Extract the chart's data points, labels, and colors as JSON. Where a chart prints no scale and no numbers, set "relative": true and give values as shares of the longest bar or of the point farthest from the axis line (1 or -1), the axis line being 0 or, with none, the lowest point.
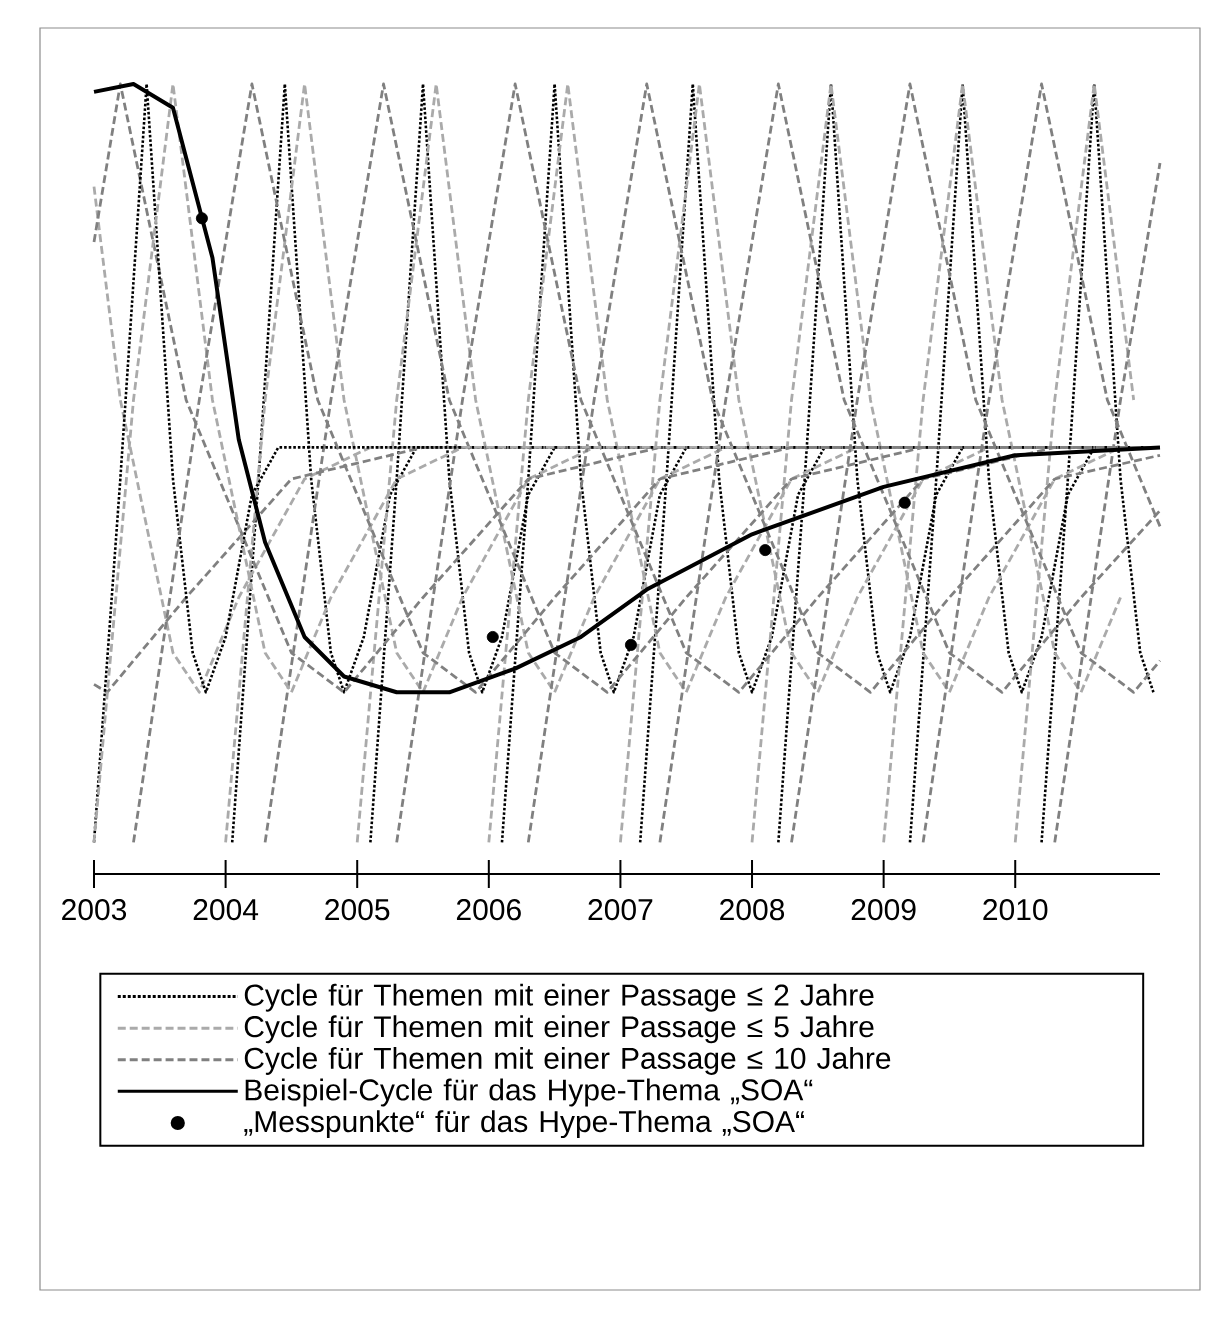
{
  "chart_data": {
    "type": "line",
    "relative": true,
    "xlim": [
      2003,
      2011.1
    ],
    "xticks": [
      2003,
      2004,
      2005,
      2006,
      2007,
      2008,
      2009,
      2010
    ],
    "tick_labels": "x",
    "legend": "bottom",
    "grid": false,
    "series": [
      {
        "name": "Cycle für Themen mit einer Passage ≤ 2 Jahre",
        "color": "#000000",
        "line_style": "dotted",
        "x": [
          2003,
          2003.2,
          2003.4,
          2003.6,
          2003.75,
          2003.85,
          2004,
          2004.2,
          2004.4,
          2011.1
        ],
        "values": [
          0.04,
          0.5,
          1,
          0.5,
          0.28,
          0.23,
          0.3,
          0.48,
          0.54,
          0.54
        ]
      },
      {
        "name": "Cycle für Themen mit einer Passage ≤ 5 Jahre",
        "color": "#aaaaaa",
        "line_style": "dashed",
        "x": [
          2003,
          2003.3,
          2003.6,
          2003.9,
          2004.3,
          2004.5,
          2004.8,
          2005.3,
          2005.8,
          2011.1
        ],
        "values": [
          0.04,
          0.6,
          1,
          0.6,
          0.28,
          0.23,
          0.35,
          0.5,
          0.54,
          0.54
        ]
      },
      {
        "name": "Cycle für Themen mit einer Passage ≤ 10 Jahre",
        "color": "#808080",
        "line_style": "dashed",
        "x": [
          2003.3,
          2003.8,
          2004.2,
          2004.7,
          2005.5,
          2005.9,
          2006.5,
          2007.3,
          2008.3,
          2011.1
        ],
        "values": [
          0.04,
          0.6,
          1,
          0.6,
          0.28,
          0.23,
          0.35,
          0.5,
          0.54,
          0.54
        ]
      },
      {
        "name": "Beispiel-Cycle für das Hype-Thema „SOA“",
        "color": "#000000",
        "line_style": "solid",
        "x": [
          2003,
          2003.3,
          2003.6,
          2003.9,
          2004.1,
          2004.3,
          2004.6,
          2004.9,
          2005.3,
          2005.7,
          2006.2,
          2006.7,
          2007.2,
          2008,
          2009,
          2010,
          2011.1
        ],
        "values": [
          0.99,
          1,
          0.97,
          0.78,
          0.55,
          0.42,
          0.3,
          0.25,
          0.23,
          0.23,
          0.26,
          0.3,
          0.36,
          0.43,
          0.49,
          0.53,
          0.54
        ]
      },
      {
        "name": "„Messpunkte“  für das Hype-Thema „SOA“",
        "color": "#000000",
        "type": "scatter",
        "x": [
          2003.82,
          2006.03,
          2007.08,
          2008.1,
          2009.16
        ],
        "values": [
          0.83,
          0.3,
          0.29,
          0.41,
          0.47
        ]
      },
      {
        "color": "#000000",
        "line_style": "dotted",
        "x": [
          2004.05,
          2004.25,
          2004.45,
          2004.65,
          2004.8,
          2004.9,
          2005.05,
          2005.25,
          2005.45,
          2011.1
        ],
        "values": [
          0.04,
          0.5,
          1,
          0.5,
          0.28,
          0.23,
          0.3,
          0.48,
          0.54,
          0.54
        ]
      },
      {
        "color": "#000000",
        "line_style": "dotted",
        "x": [
          2005.1,
          2005.3,
          2005.5,
          2005.7,
          2005.85,
          2005.95,
          2006.1,
          2006.3,
          2006.5,
          2011.1
        ],
        "values": [
          0.04,
          0.5,
          1,
          0.5,
          0.28,
          0.23,
          0.3,
          0.48,
          0.54,
          0.54
        ]
      },
      {
        "color": "#000000",
        "line_style": "dotted",
        "x": [
          2006.1,
          2006.3,
          2006.5,
          2006.7,
          2006.85,
          2006.95,
          2007.1,
          2007.3,
          2007.5,
          2011.1
        ],
        "values": [
          0.04,
          0.5,
          1,
          0.5,
          0.28,
          0.23,
          0.3,
          0.48,
          0.54,
          0.54
        ]
      },
      {
        "color": "#000000",
        "line_style": "dotted",
        "x": [
          2007.15,
          2007.35,
          2007.55,
          2007.75,
          2007.9,
          2008,
          2008.15,
          2008.35,
          2008.55,
          2011.1
        ],
        "values": [
          0.04,
          0.5,
          1,
          0.5,
          0.28,
          0.23,
          0.3,
          0.48,
          0.54,
          0.54
        ]
      },
      {
        "color": "#000000",
        "line_style": "dotted",
        "x": [
          2008.2,
          2008.4,
          2008.6,
          2008.8,
          2008.95,
          2009.05,
          2009.2,
          2009.4,
          2009.6,
          2011.1
        ],
        "values": [
          0.04,
          0.5,
          1,
          0.5,
          0.28,
          0.23,
          0.3,
          0.48,
          0.54,
          0.54
        ]
      },
      {
        "color": "#000000",
        "line_style": "dotted",
        "x": [
          2009.2,
          2009.4,
          2009.6,
          2009.8,
          2009.95,
          2010.05,
          2010.2,
          2010.4,
          2010.6,
          2011.1
        ],
        "values": [
          0.04,
          0.5,
          1,
          0.5,
          0.28,
          0.23,
          0.3,
          0.48,
          0.54,
          0.54
        ]
      },
      {
        "color": "#000000",
        "line_style": "dotted",
        "x": [
          2010.2,
          2010.4,
          2010.6,
          2010.8,
          2010.95,
          2011.05
        ],
        "values": [
          0.04,
          0.5,
          1,
          0.5,
          0.28,
          0.23
        ]
      },
      {
        "color": "#aaaaaa",
        "line_style": "dashed",
        "x": [
          2003,
          2003.2,
          2003.6,
          2003.8,
          2004.1,
          2004.6,
          2005.1,
          2011.1
        ],
        "values": [
          0.87,
          0.6,
          0.28,
          0.23,
          0.35,
          0.5,
          0.54,
          0.54
        ]
      },
      {
        "color": "#aaaaaa",
        "line_style": "dashed",
        "x": [
          2004,
          2004.3,
          2004.6,
          2004.9,
          2005.3,
          2005.5,
          2005.8,
          2006.3,
          2006.8,
          2011.1
        ],
        "values": [
          0.04,
          0.6,
          1,
          0.6,
          0.28,
          0.23,
          0.35,
          0.5,
          0.54,
          0.54
        ]
      },
      {
        "color": "#aaaaaa",
        "line_style": "dashed",
        "x": [
          2005,
          2005.3,
          2005.6,
          2005.9,
          2006.3,
          2006.5,
          2006.8,
          2007.3,
          2007.8,
          2011.1
        ],
        "values": [
          0.04,
          0.6,
          1,
          0.6,
          0.28,
          0.23,
          0.35,
          0.5,
          0.54,
          0.54
        ]
      },
      {
        "color": "#aaaaaa",
        "line_style": "dashed",
        "x": [
          2006,
          2006.3,
          2006.6,
          2006.9,
          2007.3,
          2007.5,
          2007.8,
          2008.3,
          2008.8,
          2011.1
        ],
        "values": [
          0.04,
          0.6,
          1,
          0.6,
          0.28,
          0.23,
          0.35,
          0.5,
          0.54,
          0.54
        ]
      },
      {
        "color": "#aaaaaa",
        "line_style": "dashed",
        "x": [
          2007,
          2007.3,
          2007.6,
          2007.9,
          2008.3,
          2008.5,
          2008.8,
          2009.3,
          2009.8,
          2011.1
        ],
        "values": [
          0.04,
          0.6,
          1,
          0.6,
          0.28,
          0.23,
          0.35,
          0.5,
          0.54,
          0.54
        ]
      },
      {
        "color": "#aaaaaa",
        "line_style": "dashed",
        "x": [
          2008,
          2008.3,
          2008.6,
          2008.9,
          2009.3,
          2009.5,
          2009.8,
          2010.3,
          2010.8,
          2011.1
        ],
        "values": [
          0.04,
          0.6,
          1,
          0.6,
          0.28,
          0.23,
          0.35,
          0.5,
          0.54,
          0.54
        ]
      },
      {
        "color": "#aaaaaa",
        "line_style": "dashed",
        "x": [
          2009,
          2009.3,
          2009.6,
          2009.9,
          2010.3,
          2010.5,
          2010.8
        ],
        "values": [
          0.04,
          0.6,
          1,
          0.6,
          0.28,
          0.23,
          0.35
        ]
      },
      {
        "color": "#aaaaaa",
        "line_style": "dashed",
        "x": [
          2010,
          2010.3,
          2010.6,
          2010.9
        ],
        "values": [
          0.04,
          0.6,
          1,
          0.6
        ]
      },
      {
        "color": "#808080",
        "line_style": "dashed",
        "x": [
          2003,
          2003.1,
          2003.7,
          2004.5,
          2005.5,
          2011.1
        ],
        "values": [
          0.24,
          0.23,
          0.35,
          0.5,
          0.54,
          0.54
        ]
      },
      {
        "color": "#808080",
        "line_style": "dashed",
        "x": [
          2003,
          2003.2,
          2003.7,
          2004.5,
          2004.9,
          2005.5,
          2006.3,
          2007.3,
          2011.1
        ],
        "values": [
          0.8,
          1,
          0.6,
          0.28,
          0.23,
          0.35,
          0.5,
          0.54,
          0.54
        ]
      },
      {
        "color": "#808080",
        "line_style": "dashed",
        "x": [
          2004.3,
          2004.8,
          2005.2,
          2005.7,
          2006.5,
          2006.9,
          2007.5,
          2008.3,
          2009.3,
          2011.1
        ],
        "values": [
          0.04,
          0.6,
          1,
          0.6,
          0.28,
          0.23,
          0.35,
          0.5,
          0.54,
          0.54
        ]
      },
      {
        "color": "#808080",
        "line_style": "dashed",
        "x": [
          2005.3,
          2005.8,
          2006.2,
          2006.7,
          2007.5,
          2007.9,
          2008.5,
          2009.3,
          2010.3,
          2011.1
        ],
        "values": [
          0.04,
          0.6,
          1,
          0.6,
          0.28,
          0.23,
          0.35,
          0.5,
          0.54,
          0.54
        ]
      },
      {
        "color": "#808080",
        "line_style": "dashed",
        "x": [
          2006.3,
          2006.8,
          2007.2,
          2007.7,
          2008.5,
          2008.9,
          2009.5,
          2010.3,
          2011.1
        ],
        "values": [
          0.04,
          0.6,
          1,
          0.6,
          0.28,
          0.23,
          0.35,
          0.5,
          0.53
        ]
      },
      {
        "color": "#808080",
        "line_style": "dashed",
        "x": [
          2007.3,
          2007.8,
          2008.2,
          2008.7,
          2009.5,
          2009.9,
          2010.5,
          2011.1
        ],
        "values": [
          0.04,
          0.6,
          1,
          0.6,
          0.28,
          0.23,
          0.35,
          0.46
        ]
      },
      {
        "color": "#808080",
        "line_style": "dashed",
        "x": [
          2008.3,
          2008.8,
          2009.2,
          2009.7,
          2010.5,
          2010.9,
          2011.1
        ],
        "values": [
          0.04,
          0.6,
          1,
          0.6,
          0.28,
          0.23,
          0.27
        ]
      },
      {
        "color": "#808080",
        "line_style": "dashed",
        "x": [
          2009.3,
          2009.8,
          2010.2,
          2010.7,
          2011.1
        ],
        "values": [
          0.04,
          0.6,
          1,
          0.6,
          0.44
        ]
      },
      {
        "color": "#808080",
        "line_style": "dashed",
        "x": [
          2010.3,
          2010.8,
          2011.1
        ],
        "values": [
          0.04,
          0.6,
          0.9
        ]
      }
    ]
  }
}
